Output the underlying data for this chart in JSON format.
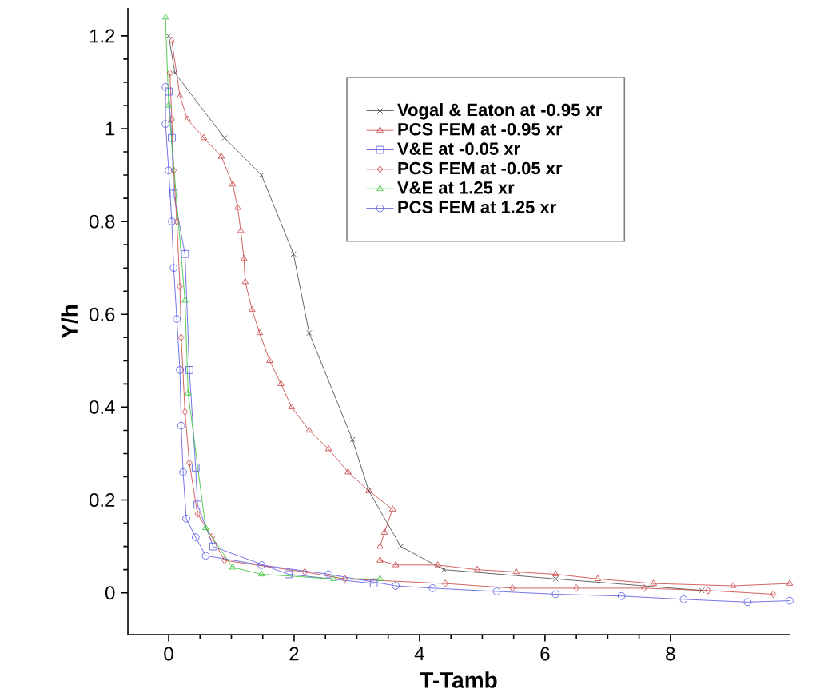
{
  "chart_data": {
    "type": "line",
    "xlabel": "T-Tamb",
    "ylabel": "Y/h",
    "xlim": [
      -0.65,
      9.9
    ],
    "ylim": [
      -0.09,
      1.26
    ],
    "xticks": [
      0,
      2,
      4,
      6,
      8
    ],
    "yticks": [
      0,
      0.2,
      0.4,
      0.6,
      0.8,
      1,
      1.2
    ],
    "grid": false,
    "legend": "top right",
    "series": [
      {
        "name": "Vogal & Eaton at -0.95 xr",
        "color": "#404040",
        "marker": "cross",
        "x": [
          0.0,
          0.1,
          0.89,
          1.48,
          1.99,
          2.24,
          2.93,
          3.19,
          3.7,
          4.39,
          6.17,
          8.5
        ],
        "values": [
          1.2,
          1.12,
          0.98,
          0.9,
          0.73,
          0.56,
          0.33,
          0.22,
          0.1,
          0.05,
          0.03,
          0.005
        ]
      },
      {
        "name": "PCS FEM at -0.95 xr",
        "color": "#c83c3c",
        "marker": "triangle",
        "x": [
          0.05,
          0.18,
          0.3,
          0.56,
          0.84,
          1.02,
          1.1,
          1.15,
          1.2,
          1.22,
          1.33,
          1.45,
          1.61,
          1.79,
          1.96,
          2.24,
          2.55,
          2.86,
          3.19,
          3.57,
          3.44,
          3.37,
          3.37,
          3.62,
          4.29,
          4.92,
          5.54,
          6.17,
          6.84,
          7.73,
          9.0,
          9.9
        ],
        "values": [
          1.19,
          1.07,
          1.02,
          0.98,
          0.94,
          0.88,
          0.83,
          0.78,
          0.72,
          0.67,
          0.61,
          0.56,
          0.5,
          0.45,
          0.4,
          0.35,
          0.31,
          0.26,
          0.22,
          0.18,
          0.13,
          0.1,
          0.07,
          0.06,
          0.06,
          0.05,
          0.045,
          0.04,
          0.03,
          0.02,
          0.015,
          0.02
        ]
      },
      {
        "name": "V&E at -0.05 xr",
        "color": "#5050e0",
        "marker": "square",
        "x": [
          0.0,
          0.05,
          0.08,
          0.26,
          0.33,
          0.43,
          0.46,
          0.71,
          1.91,
          3.27
        ],
        "values": [
          1.08,
          0.98,
          0.86,
          0.73,
          0.48,
          0.27,
          0.19,
          0.1,
          0.04,
          0.02
        ]
      },
      {
        "name": "PCS FEM at -0.05 xr",
        "color": "#c83c3c",
        "marker": "diamond",
        "x": [
          0.02,
          0.05,
          0.08,
          0.13,
          0.18,
          0.2,
          0.26,
          0.33,
          0.46,
          0.69,
          0.89,
          2.17,
          2.81,
          4.41,
          5.48,
          6.5,
          7.58,
          8.6,
          9.64
        ],
        "values": [
          1.12,
          1.02,
          0.91,
          0.8,
          0.66,
          0.55,
          0.39,
          0.28,
          0.17,
          0.12,
          0.07,
          0.045,
          0.03,
          0.02,
          0.01,
          0.01,
          0.01,
          0.005,
          -0.003
        ]
      },
      {
        "name": "V&E at 1.25 xr",
        "color": "#30c030",
        "marker": "triangle",
        "x": [
          -0.05,
          0.0,
          0.26,
          0.31,
          0.59,
          1.02,
          1.48,
          2.63,
          3.37
        ],
        "values": [
          1.24,
          1.05,
          0.63,
          0.43,
          0.14,
          0.055,
          0.04,
          0.03,
          0.03
        ]
      },
      {
        "name": "PCS FEM at 1.25 xr",
        "color": "#5050e0",
        "marker": "circle",
        "x": [
          -0.05,
          -0.05,
          0.0,
          0.05,
          0.08,
          0.13,
          0.18,
          0.2,
          0.23,
          0.28,
          0.43,
          0.59,
          1.48,
          2.55,
          3.62,
          4.21,
          5.23,
          6.17,
          7.22,
          8.21,
          9.23,
          9.9
        ],
        "values": [
          1.09,
          1.01,
          0.91,
          0.8,
          0.7,
          0.59,
          0.48,
          0.36,
          0.26,
          0.16,
          0.12,
          0.08,
          0.06,
          0.04,
          0.015,
          0.01,
          0.003,
          -0.003,
          -0.007,
          -0.014,
          -0.02,
          -0.017
        ]
      }
    ]
  }
}
